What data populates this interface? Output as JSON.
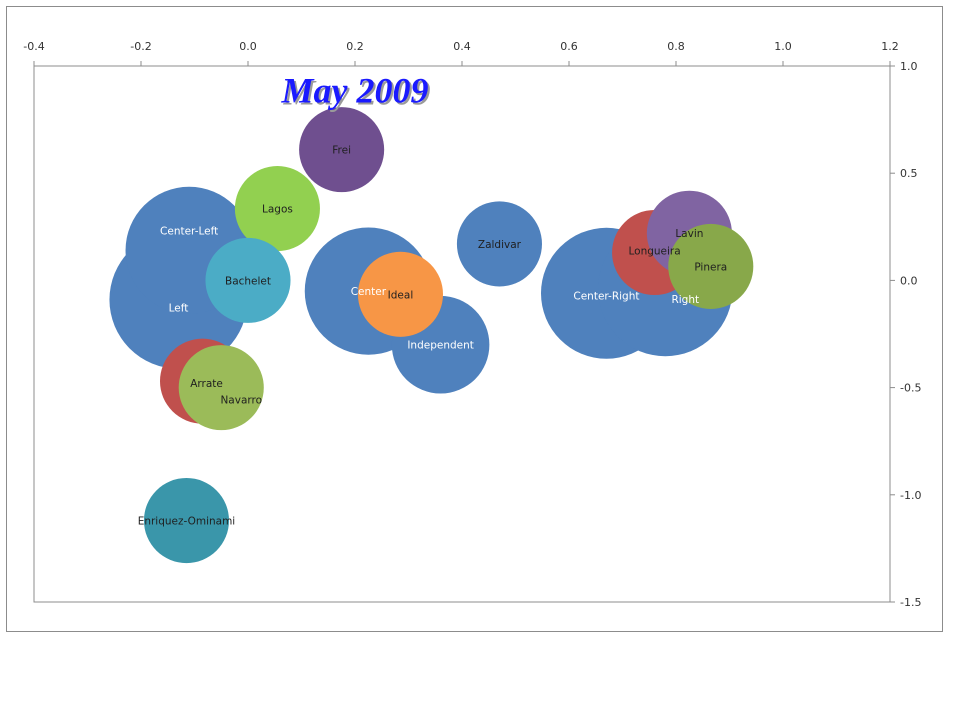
{
  "chart_data": {
    "type": "bubble",
    "title": "May 2009",
    "title_color": "#1a1aff",
    "xlabel": "",
    "ylabel": "",
    "xlim": [
      -0.4,
      1.2
    ],
    "ylim": [
      -1.5,
      1.0
    ],
    "x_ticks": [
      "-0.4",
      "-0.2",
      "0.0",
      "0.2",
      "0.4",
      "0.6",
      "0.8",
      "1.0",
      "1.2"
    ],
    "y_ticks": [
      "1.0",
      "0.5",
      "0.0",
      "-0.5",
      "-1.0",
      "-1.5"
    ],
    "x_axis_position": "top",
    "y_axis_position": "right",
    "grid": false,
    "points": [
      {
        "label": "Left",
        "x": -0.13,
        "y": -0.09,
        "size": 1.0,
        "color": "#4f81bd",
        "text_color": "#ffffff"
      },
      {
        "label": "Center-Left",
        "x": -0.11,
        "y": 0.14,
        "size": 0.85,
        "color": "#4f81bd",
        "text_color": "#ffffff"
      },
      {
        "label": "Center",
        "x": 0.225,
        "y": -0.05,
        "size": 0.85,
        "color": "#4f81bd",
        "text_color": "#ffffff"
      },
      {
        "label": "Independent",
        "x": 0.36,
        "y": -0.3,
        "size": 0.5,
        "color": "#4f81bd",
        "text_color": "#ffffff"
      },
      {
        "label": "Zaldivar",
        "x": 0.47,
        "y": 0.17,
        "size": 0.38,
        "color": "#4f81bd",
        "text_color": "#1f1f1f"
      },
      {
        "label": "Center-Right",
        "x": 0.67,
        "y": -0.06,
        "size": 0.9,
        "color": "#4f81bd",
        "text_color": "#ffffff"
      },
      {
        "label": "Right",
        "x": 0.78,
        "y": -0.04,
        "size": 0.95,
        "color": "#4f81bd",
        "text_color": "#ffffff"
      },
      {
        "label": "Frei",
        "x": 0.175,
        "y": 0.61,
        "size": 0.38,
        "color": "#6f4f8f",
        "text_color": "#1f1f1f"
      },
      {
        "label": "Lagos",
        "x": 0.055,
        "y": 0.335,
        "size": 0.38,
        "color": "#92d050",
        "text_color": "#1f1f1f"
      },
      {
        "label": "Bachelet",
        "x": 0.0,
        "y": 0.0,
        "size": 0.38,
        "color": "#4bacc6",
        "text_color": "#1f1f1f"
      },
      {
        "label": "Ideal",
        "x": 0.285,
        "y": -0.065,
        "size": 0.38,
        "color": "#f79646",
        "text_color": "#1f1f1f"
      },
      {
        "label": "Arrate",
        "x": -0.085,
        "y": -0.47,
        "size": 0.38,
        "color": "#c0504d",
        "text_color": "#1f1f1f"
      },
      {
        "label": "Navarro",
        "x": -0.05,
        "y": -0.5,
        "size": 0.38,
        "color": "#9bbb59",
        "text_color": "#1f1f1f"
      },
      {
        "label": "Enriquez-Ominami",
        "x": -0.115,
        "y": -1.12,
        "size": 0.38,
        "color": "#3a96aa",
        "text_color": "#1f1f1f"
      },
      {
        "label": "Longueira",
        "x": 0.76,
        "y": 0.13,
        "size": 0.38,
        "color": "#c0504d",
        "text_color": "#1f1f1f"
      },
      {
        "label": "Lavin",
        "x": 0.825,
        "y": 0.22,
        "size": 0.38,
        "color": "#8064a2",
        "text_color": "#1f1f1f"
      },
      {
        "label": "Pinera",
        "x": 0.865,
        "y": 0.065,
        "size": 0.38,
        "color": "#88a84a",
        "text_color": "#1f1f1f"
      }
    ]
  }
}
